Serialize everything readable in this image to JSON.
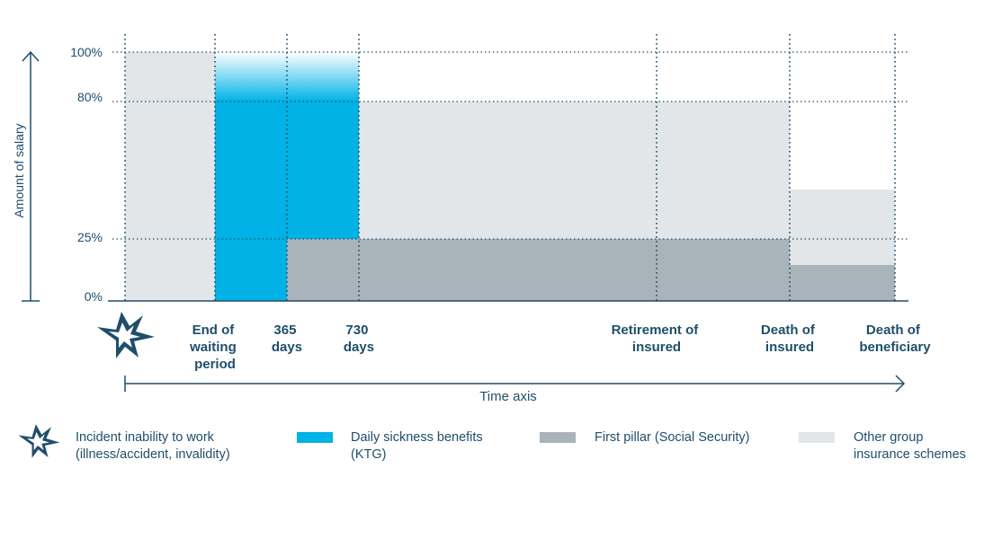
{
  "colors": {
    "ktg": "#00b2e5",
    "first_pillar": "#a9b3ba",
    "other_group": "#e3e6e9",
    "ink": "#1f4e6b"
  },
  "axes": {
    "y_title": "Amount of salary",
    "x_title": "Time axis",
    "y_ticks": [
      "100%",
      "80%",
      "25%",
      "0%"
    ]
  },
  "milestones": [
    {
      "id": "end-waiting",
      "lines": [
        "End of",
        "waiting",
        "period"
      ]
    },
    {
      "id": "365-days",
      "lines": [
        "365",
        "days"
      ]
    },
    {
      "id": "730-days",
      "lines": [
        "730",
        "days"
      ]
    },
    {
      "id": "retirement",
      "lines": [
        "Retirement of",
        "insured"
      ]
    },
    {
      "id": "death-insured",
      "lines": [
        "Death of",
        "insured"
      ]
    },
    {
      "id": "death-beneficiary",
      "lines": [
        "Death of",
        "beneficiary"
      ]
    }
  ],
  "legend": {
    "incident": [
      "Incident inability to work",
      "(illness/accident, invalidity)"
    ],
    "ktg": [
      "Daily sickness benefits",
      "(KTG)"
    ],
    "first_pillar": [
      "First pillar (Social Security)"
    ],
    "other_group": [
      "Other group",
      "insurance schemes"
    ]
  },
  "icons": {
    "incident": "starburst-icon"
  }
}
